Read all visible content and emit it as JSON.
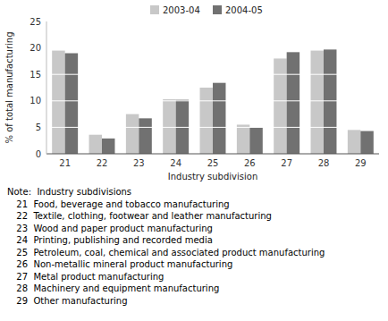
{
  "chart_data": {
    "type": "bar",
    "categories": [
      "21",
      "22",
      "23",
      "24",
      "25",
      "26",
      "27",
      "28",
      "29"
    ],
    "series": [
      {
        "name": "2003-04",
        "color": "#c8c8c8",
        "values": [
          19.5,
          3.6,
          7.5,
          10.3,
          12.5,
          5.5,
          18.0,
          19.5,
          4.5
        ]
      },
      {
        "name": "2004-05",
        "color": "#717171",
        "values": [
          19.0,
          2.9,
          6.7,
          10.2,
          13.4,
          5.0,
          19.2,
          19.7,
          4.3
        ]
      }
    ],
    "xlabel": "Industry subdivision",
    "ylabel": "% of total manufacturing",
    "ylim": [
      0,
      25
    ],
    "yticks": [
      0,
      5,
      10,
      15,
      20,
      25
    ],
    "grid": true,
    "legend": "top",
    "annotations": [
      "Note:  Industry subdivisions",
      "  21  Food, beverage and tobacco manufacturing",
      "  22  Textile, clothing, footwear and leather manufacturing",
      "  23  Wood and paper product manufacturing",
      "  24  Printing, publishing and recorded media",
      "  25  Petroleum, coal, chemical and associated product manufacturing",
      "  26  Non-metallic mineral product manufacturing",
      "  27  Metal product manufacturing",
      "  28  Machinery and equipment manufacturing",
      "  29  Other manufacturing"
    ]
  }
}
